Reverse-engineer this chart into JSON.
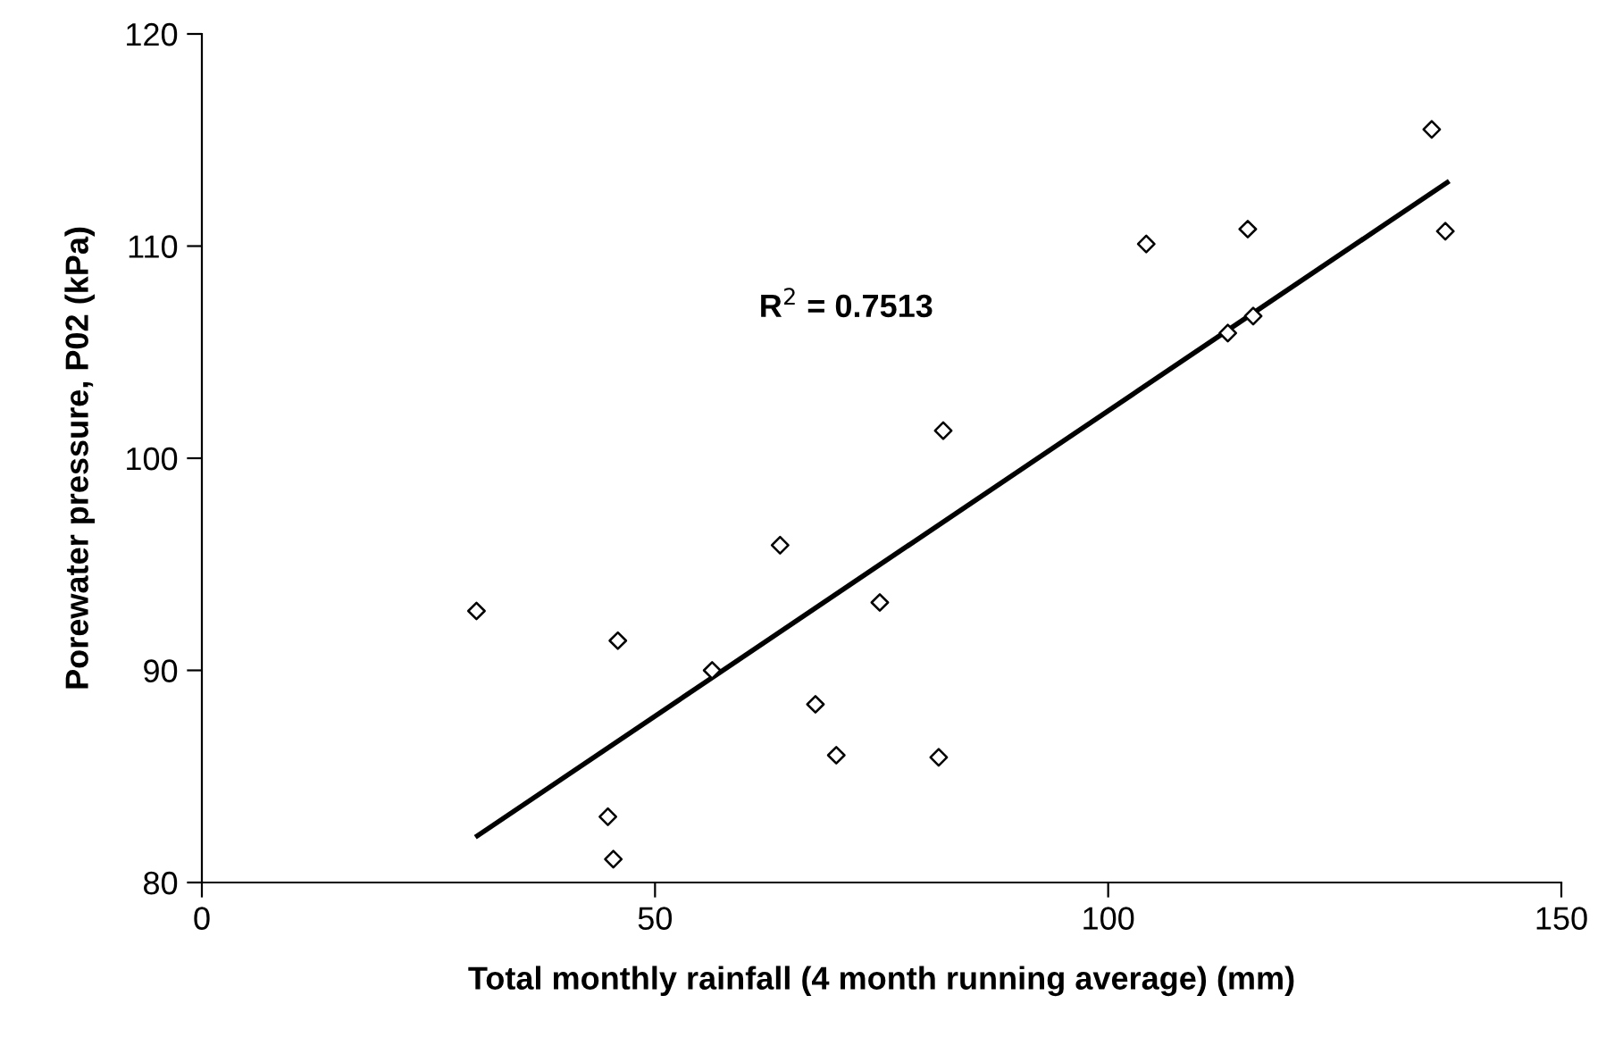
{
  "chart_data": {
    "type": "scatter",
    "xlabel": "Total monthly rainfall (4 month running average) (mm)",
    "ylabel": "Porewater pressure, P02 (kPa)",
    "xlim": [
      0,
      150
    ],
    "xticks": [
      0,
      50,
      100,
      150
    ],
    "ylim": [
      80,
      120
    ],
    "yticks": [
      80,
      90,
      100,
      110,
      120
    ],
    "grid": false,
    "legend": false,
    "marker": "diamond",
    "series": [
      {
        "color": "#000000",
        "x": [
          30.3,
          45.9,
          56.3,
          63.8,
          67.7,
          70.0,
          44.8,
          45.4,
          74.8,
          81.8,
          81.3,
          104.2,
          115.4,
          113.2,
          116.0,
          135.7,
          137.2
        ],
        "values": [
          92.8,
          91.4,
          90.0,
          95.9,
          88.4,
          86.0,
          83.1,
          81.1,
          93.2,
          101.3,
          85.9,
          110.1,
          110.8,
          105.9,
          106.7,
          115.5,
          110.7
        ]
      },
      {
        "type": "line",
        "color": "#000000",
        "marker": "none",
        "line_style": "solid",
        "x": [
          30.4,
          137.4
        ],
        "values": [
          82.2,
          113.0
        ]
      }
    ],
    "annotations": [
      "R$^{2}$ = 0.7513"
    ]
  }
}
